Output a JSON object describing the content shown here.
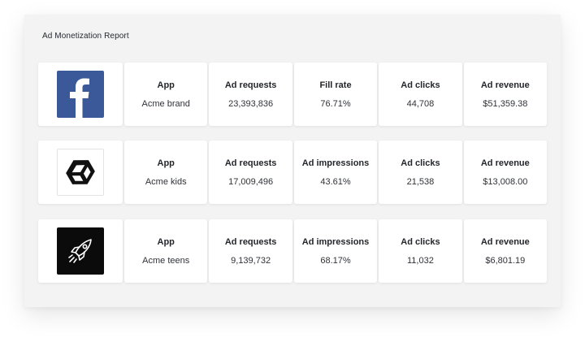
{
  "report": {
    "title": "Ad Monetization Report",
    "rows": [
      {
        "logo_icon": "facebook-icon",
        "metrics": [
          {
            "label": "App",
            "value": "Acme brand"
          },
          {
            "label": "Ad requests",
            "value": "23,393,836"
          },
          {
            "label": "Fill rate",
            "value": "76.71%"
          },
          {
            "label": "Ad clicks",
            "value": "44,708"
          },
          {
            "label": "Ad revenue",
            "value": "$51,359.38"
          }
        ]
      },
      {
        "logo_icon": "unity-icon",
        "metrics": [
          {
            "label": "App",
            "value": "Acme kids"
          },
          {
            "label": "Ad requests",
            "value": "17,009,496"
          },
          {
            "label": "Ad impressions",
            "value": "43.61%"
          },
          {
            "label": "Ad clicks",
            "value": "21,538"
          },
          {
            "label": "Ad revenue",
            "value": "$13,008.00"
          }
        ]
      },
      {
        "logo_icon": "rocket-icon",
        "metrics": [
          {
            "label": "App",
            "value": "Acme teens"
          },
          {
            "label": "Ad requests",
            "value": "9,139,732"
          },
          {
            "label": "Ad impressions",
            "value": "68.17%"
          },
          {
            "label": "Ad clicks",
            "value": "11,032"
          },
          {
            "label": "Ad revenue",
            "value": "$6,801.19"
          }
        ]
      }
    ]
  },
  "colors": {
    "facebook_brand": "#3b5998",
    "panel_background": "#f3f3f4",
    "card_background": "#ffffff"
  }
}
